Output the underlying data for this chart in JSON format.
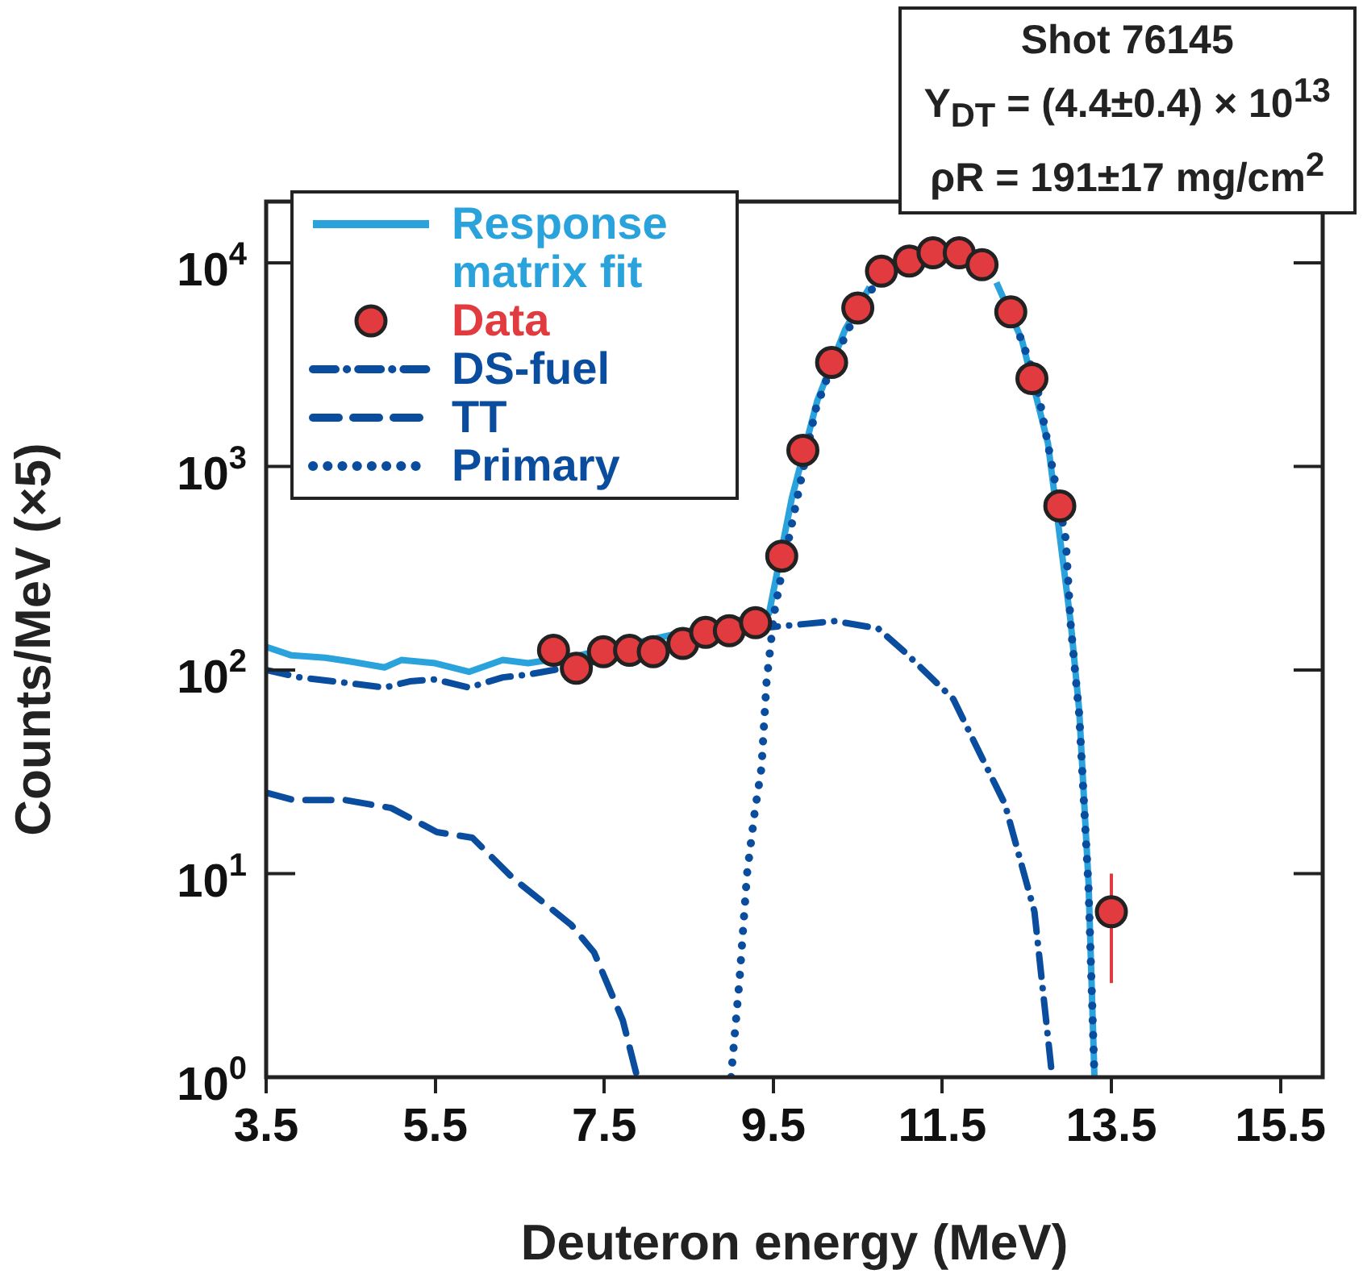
{
  "chart_data": {
    "type": "line",
    "xlabel": "Deuteron energy (MeV)",
    "ylabel": "Counts/MeV (×5)",
    "annotations": [
      "Shot 76145",
      "Y$_{DT}$ = (4.4±0.4) × 10$^{13}$",
      "ρR = 191±17 mg/cm$^{2}$"
    ],
    "log": "y",
    "grid": false,
    "legend": "top left",
    "xlim": [
      3.5,
      16
    ],
    "xticks": [
      3.5,
      5.5,
      7.5,
      9.5,
      11.5,
      13.5,
      15.5
    ],
    "ylim": [
      1,
      20000
    ],
    "yticks": [
      {
        "value": 1,
        "label": "10$^{0}$"
      },
      {
        "value": 10,
        "label": "10$^{1}$"
      },
      {
        "value": 100,
        "label": "10$^{2}$"
      },
      {
        "value": 1000,
        "label": "10$^{3}$"
      },
      {
        "value": 10000,
        "label": "10$^{4}$"
      }
    ],
    "series": [
      {
        "name": "Response matrix fit",
        "color": "#2aa3dd",
        "line_style": "solid",
        "marker": "none",
        "x": [
          3.5,
          3.8,
          4.2,
          4.5,
          4.9,
          5.1,
          5.5,
          5.9,
          6.3,
          6.6,
          7.2,
          9.45,
          9.72,
          10.02,
          10.35,
          10.64,
          10.95,
          11.25,
          11.55,
          11.84,
          12.14,
          12.44,
          12.75,
          13.02,
          13.12,
          13.23,
          13.3
        ],
        "values": [
          130,
          118,
          115,
          110,
          103,
          112,
          108,
          98,
          112,
          108,
          118,
          190,
          700,
          2100,
          4700,
          7600,
          null,
          null,
          null,
          null,
          8000,
          4200,
          1300,
          170,
          63,
          9,
          1
        ]
      },
      {
        "name": "Data",
        "type": "scatter",
        "color": "#e23b3f",
        "marker": "circle",
        "x": [
          6.9,
          7.17,
          7.49,
          7.8,
          8.08,
          8.43,
          8.7,
          8.98,
          9.29,
          9.6,
          9.85,
          10.19,
          10.5,
          10.78,
          11.11,
          11.39,
          11.7,
          11.97,
          12.31,
          12.56,
          12.89,
          13.5
        ],
        "values": [
          125,
          102,
          123,
          125,
          123,
          135,
          153,
          156,
          171,
          363,
          1200,
          3240,
          6000,
          9100,
          10200,
          11200,
          11200,
          9800,
          5750,
          2700,
          640,
          6.5
        ],
        "errors": [
          null,
          null,
          null,
          null,
          null,
          null,
          null,
          null,
          null,
          null,
          null,
          null,
          null,
          null,
          null,
          null,
          null,
          null,
          null,
          null,
          null,
          [
            2.9,
            10
          ]
        ]
      },
      {
        "name": "DS-fuel",
        "color": "#0a4d9e",
        "line_style": "dashdot",
        "marker": "none",
        "x": [
          3.5,
          3.9,
          4.3,
          4.6,
          4.9,
          5.2,
          5.5,
          5.9,
          6.3,
          6.6,
          6.9,
          9.0,
          9.45,
          10.23,
          10.74,
          11.07,
          11.63,
          11.97,
          12.24,
          12.59,
          12.8
        ],
        "values": [
          100,
          92,
          88,
          85,
          82,
          88,
          90,
          82,
          92,
          95,
          100,
          150,
          162,
          174,
          160,
          121,
          72,
          37,
          22,
          6.5,
          1
        ]
      },
      {
        "name": "TT",
        "color": "#0a4d9e",
        "line_style": "dashed",
        "marker": "none",
        "x": [
          3.5,
          3.82,
          4.43,
          4.98,
          5.52,
          5.94,
          6.42,
          7.11,
          7.38,
          7.72,
          7.89
        ],
        "values": [
          25,
          23,
          23,
          21,
          16,
          15,
          9.5,
          5.6,
          4.1,
          1.9,
          1
        ]
      },
      {
        "name": "Primary",
        "color": "#0a4d9e",
        "line_style": "dotted",
        "marker": "none",
        "x": [
          9.0,
          9.1,
          9.19,
          9.28,
          9.36,
          9.42,
          9.49,
          9.52,
          9.6,
          10.0,
          10.2,
          10.5,
          10.8,
          11.1,
          11.5,
          11.9,
          12.3,
          12.6,
          12.89,
          12.96,
          13.02,
          13.12,
          13.23,
          13.3
        ],
        "values": [
          1,
          3,
          10,
          20,
          33,
          87,
          160,
          200,
          300,
          1900,
          3200,
          5900,
          8900,
          10700,
          null,
          null,
          5900,
          2750,
          630,
          440,
          165,
          60,
          8.5,
          1
        ]
      }
    ]
  }
}
